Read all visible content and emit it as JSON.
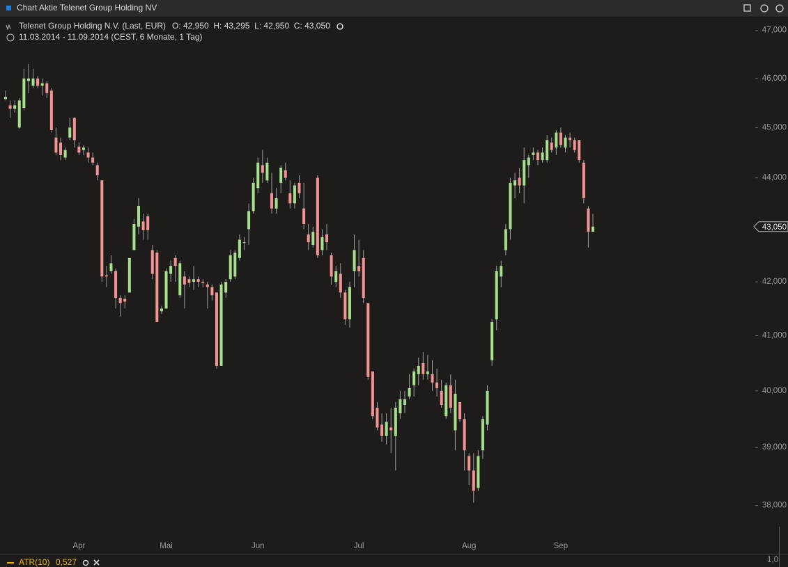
{
  "chart_data": {
    "type": "candlestick",
    "title": "Chart Aktie Telenet Group Holding NV",
    "subtitle": "Telenet Group Holding N.V. (Last, EUR)",
    "ohlc": "O: 42,950  H: 43,295  L: 42,950  C: 43,050",
    "period": "11.03.2014 - 11.09.2014 (CEST, 6 Monate, 1 Tag)",
    "last_label": "43,050",
    "indicator": {
      "name": "ATR(10)",
      "value": "0,527",
      "axis_label": "1,0"
    },
    "log_scale": true,
    "up_color": "#a6e08c",
    "down_color": "#f29494",
    "ylim": [
      37200,
      47230
    ],
    "yticks": [
      {
        "value": 38000,
        "label": "38,000"
      },
      {
        "value": 39000,
        "label": "39,000"
      },
      {
        "value": 40000,
        "label": "40,000"
      },
      {
        "value": 41000,
        "label": "41,000"
      },
      {
        "value": 42000,
        "label": "42,000"
      },
      {
        "value": 44000,
        "label": "44,000"
      },
      {
        "value": 45000,
        "label": "45,000"
      },
      {
        "value": 46000,
        "label": "46,000"
      },
      {
        "value": 47000,
        "label": "47,000"
      }
    ],
    "categories": [
      null,
      null,
      null,
      null,
      null,
      null,
      null,
      null,
      null,
      null,
      null,
      null,
      null,
      null,
      null,
      null,
      "Apr",
      null,
      null,
      null,
      null,
      null,
      null,
      null,
      null,
      null,
      null,
      null,
      null,
      null,
      null,
      null,
      null,
      null,
      null,
      "Mai",
      null,
      null,
      null,
      null,
      null,
      null,
      null,
      null,
      null,
      null,
      null,
      null,
      null,
      null,
      null,
      null,
      null,
      null,
      null,
      "Jun",
      null,
      null,
      null,
      null,
      null,
      null,
      null,
      null,
      null,
      null,
      null,
      null,
      null,
      null,
      null,
      null,
      null,
      null,
      null,
      null,
      null,
      "Jul",
      null,
      null,
      null,
      null,
      null,
      null,
      null,
      null,
      null,
      null,
      null,
      null,
      null,
      null,
      null,
      null,
      null,
      null,
      null,
      null,
      null,
      null,
      null,
      "Aug",
      null,
      null,
      null,
      null,
      null,
      null,
      null,
      null,
      null,
      null,
      null,
      null,
      null,
      null,
      null,
      null,
      null,
      null,
      null,
      "Sep",
      null,
      null,
      null,
      null,
      null,
      null,
      null
    ],
    "open": [
      45580,
      45450,
      45380,
      45000,
      45400,
      45950,
      45850,
      46000,
      45850,
      45900,
      45750,
      44800,
      44700,
      44400,
      44800,
      45200,
      44620,
      44550,
      44500,
      44400,
      44250,
      43950,
      42120,
      42200,
      42200,
      41700,
      41680,
      41800,
      42600,
      43050,
      43150,
      43250,
      42600,
      42550,
      41450,
      41500,
      42150,
      42450,
      41750,
      42100,
      42050,
      42000,
      42050,
      42000,
      41950,
      41900,
      41800,
      40450,
      41800,
      42050,
      42100,
      42450,
      42750,
      43000,
      43350,
      43800,
      44250,
      43950,
      43700,
      43400,
      43900,
      44150,
      43700,
      43500,
      43900,
      43400,
      42900,
      42700,
      44000,
      42600,
      42900,
      42500,
      42000,
      42150,
      41800,
      41300,
      42200,
      42300,
      42450,
      41600,
      40350,
      39700,
      39400,
      39200,
      39350,
      39200,
      39600,
      39750,
      39900,
      40100,
      40300,
      40500,
      40300,
      40300,
      40150,
      40000,
      39550,
      40100,
      39300,
      39800,
      39500,
      38850,
      38600,
      38300,
      38950,
      39400,
      40550,
      41300,
      42100,
      42600,
      43000,
      43850,
      44000,
      43850,
      44250,
      44450,
      44500,
      44350,
      44350,
      44700,
      44600,
      44900,
      44600,
      44800,
      44750,
      44750,
      44300,
      43400,
      42950
    ],
    "high": [
      45750,
      45550,
      45550,
      45600,
      46200,
      46300,
      46200,
      46050,
      46000,
      45950,
      45800,
      45000,
      44800,
      44600,
      45200,
      45200,
      44700,
      44650,
      44600,
      44500,
      44300,
      43950,
      42300,
      42500,
      42250,
      41750,
      41750,
      42450,
      43200,
      43600,
      43300,
      43300,
      42700,
      42600,
      41550,
      42250,
      42400,
      42500,
      42400,
      42200,
      42100,
      42300,
      42100,
      42050,
      42000,
      41950,
      41800,
      42000,
      42050,
      42600,
      42600,
      42900,
      42850,
      43500,
      44000,
      44400,
      44550,
      44400,
      44100,
      43800,
      44250,
      44300,
      43950,
      43900,
      44050,
      43900,
      43100,
      43050,
      44050,
      43000,
      43100,
      42550,
      42300,
      42350,
      41850,
      42000,
      42900,
      42800,
      42600,
      41600,
      40350,
      39800,
      39600,
      39600,
      39700,
      39800,
      40000,
      40000,
      40300,
      40400,
      40600,
      40700,
      40650,
      40550,
      40400,
      40200,
      40150,
      40300,
      40200,
      39800,
      39600,
      38900,
      38900,
      38950,
      39550,
      40100,
      41300,
      42300,
      42400,
      43100,
      44000,
      44100,
      44200,
      44600,
      44450,
      44600,
      44550,
      44600,
      44850,
      44800,
      44950,
      45000,
      44850,
      44900,
      44800,
      44750,
      44350,
      43450,
      43295
    ],
    "low": [
      45550,
      45200,
      45300,
      44980,
      45350,
      45700,
      45800,
      45800,
      45650,
      45600,
      44900,
      44450,
      44350,
      44350,
      44750,
      44600,
      44450,
      44450,
      44300,
      44250,
      43950,
      42000,
      41900,
      42150,
      41500,
      41350,
      41500,
      41800,
      42600,
      42900,
      42800,
      42800,
      42050,
      41250,
      41400,
      41500,
      42000,
      42000,
      41700,
      41500,
      41900,
      41850,
      41900,
      41900,
      41500,
      41650,
      40400,
      40450,
      41700,
      42000,
      42050,
      42400,
      42600,
      42700,
      43300,
      43700,
      43900,
      43900,
      43300,
      43300,
      43700,
      43950,
      43400,
      43400,
      43600,
      43000,
      42600,
      42650,
      42450,
      42500,
      42600,
      41950,
      41900,
      41700,
      41200,
      41150,
      41900,
      42100,
      41600,
      40200,
      39500,
      39300,
      39100,
      39050,
      38900,
      38600,
      39500,
      39600,
      39850,
      39900,
      40100,
      40200,
      40200,
      40000,
      39900,
      39700,
      39500,
      39600,
      38950,
      39450,
      38600,
      38350,
      38050,
      38250,
      38800,
      39300,
      40450,
      41100,
      41900,
      42500,
      42800,
      43600,
      43700,
      43500,
      44000,
      44350,
      44250,
      44300,
      44300,
      44500,
      44450,
      44600,
      44500,
      44600,
      44500,
      44300,
      43500,
      42650,
      42950
    ],
    "close": [
      45620,
      45380,
      45450,
      45550,
      46000,
      46000,
      46000,
      45850,
      45900,
      45700,
      44950,
      44500,
      44450,
      44550,
      45000,
      44750,
      44500,
      44600,
      44400,
      44300,
      44050,
      42100,
      42100,
      42350,
      41700,
      41600,
      41630,
      42450,
      43100,
      43450,
      42980,
      42980,
      42150,
      41250,
      41500,
      42200,
      42300,
      42300,
      42350,
      41950,
      41980,
      42050,
      42000,
      41980,
      41900,
      41750,
      40450,
      41950,
      42000,
      42500,
      42550,
      42800,
      42750,
      43350,
      43900,
      44300,
      44100,
      44300,
      43400,
      43600,
      44200,
      44000,
      43500,
      43850,
      43700,
      43100,
      42750,
      42950,
      42500,
      42850,
      42750,
      42100,
      42200,
      41800,
      41300,
      41900,
      42600,
      42200,
      41700,
      40250,
      39550,
      39350,
      39200,
      39450,
      39300,
      39700,
      39850,
      39850,
      40050,
      40350,
      40450,
      40300,
      40350,
      40150,
      40050,
      39750,
      40100,
      39700,
      39950,
      39500,
      38950,
      38600,
      38250,
      38850,
      39500,
      40000,
      41250,
      42200,
      42300,
      43000,
      43900,
      43950,
      43850,
      44350,
      44400,
      44500,
      44350,
      44500,
      44750,
      44550,
      44900,
      44650,
      44800,
      44750,
      44550,
      44350,
      43600,
      42950,
      43050
    ]
  }
}
